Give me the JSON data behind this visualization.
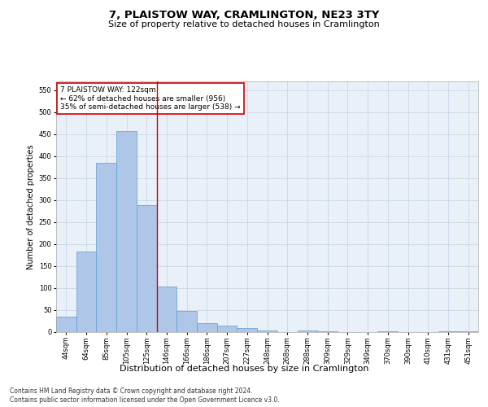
{
  "title": "7, PLAISTOW WAY, CRAMLINGTON, NE23 3TY",
  "subtitle": "Size of property relative to detached houses in Cramlington",
  "xlabel": "Distribution of detached houses by size in Cramlington",
  "ylabel": "Number of detached properties",
  "footnote1": "Contains HM Land Registry data © Crown copyright and database right 2024.",
  "footnote2": "Contains public sector information licensed under the Open Government Licence v3.0.",
  "categories": [
    "44sqm",
    "64sqm",
    "85sqm",
    "105sqm",
    "125sqm",
    "146sqm",
    "166sqm",
    "186sqm",
    "207sqm",
    "227sqm",
    "248sqm",
    "268sqm",
    "288sqm",
    "309sqm",
    "329sqm",
    "349sqm",
    "370sqm",
    "390sqm",
    "410sqm",
    "431sqm",
    "451sqm"
  ],
  "values": [
    35,
    182,
    384,
    457,
    288,
    102,
    47,
    19,
    14,
    8,
    2,
    0,
    2,
    1,
    0,
    0,
    1,
    0,
    0,
    1,
    1
  ],
  "bar_color": "#aec6e8",
  "bar_edge_color": "#5a9fd4",
  "vline_x": 4.5,
  "vline_color": "#cc0000",
  "annotation_text": "7 PLAISTOW WAY: 122sqm\n← 62% of detached houses are smaller (956)\n35% of semi-detached houses are larger (538) →",
  "annotation_box_color": "#ffffff",
  "annotation_box_edge_color": "#cc0000",
  "ylim": [
    0,
    570
  ],
  "yticks": [
    0,
    50,
    100,
    150,
    200,
    250,
    300,
    350,
    400,
    450,
    500,
    550
  ],
  "grid_color": "#c8d8e8",
  "background_color": "#eaf0f8",
  "fig_background_color": "#ffffff",
  "title_fontsize": 9.5,
  "subtitle_fontsize": 8,
  "xlabel_fontsize": 8,
  "ylabel_fontsize": 7,
  "tick_fontsize": 6,
  "annotation_fontsize": 6.5,
  "footnote_fontsize": 5.5
}
